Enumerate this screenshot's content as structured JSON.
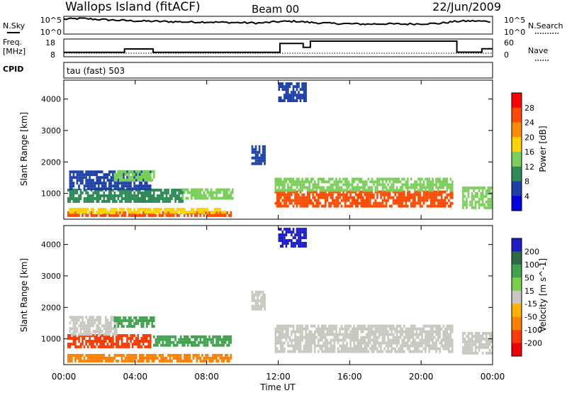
{
  "header": {
    "station": "Wallops Island (fitACF)",
    "beam": "Beam 00",
    "date": "22/Jun/2009"
  },
  "panels": {
    "nsky_label": "N.Sky",
    "nsearch_label": "N.Search",
    "freq_label_line1": "Freq.",
    "freq_label_line2": "[MHz]",
    "nave_label": "Nave",
    "cpid_label": "CPID",
    "cpid_text": "tau (fast) 503",
    "noise_ticks_left": [
      "10^5",
      "10^0"
    ],
    "noise_ticks_right": [
      "10^5",
      "10^0"
    ],
    "freq_ticks": [
      "18",
      "8"
    ],
    "nave_ticks": [
      "60",
      "0"
    ]
  },
  "chart_data": [
    {
      "type": "line",
      "name": "noise",
      "x_range": [
        "00:00",
        "24:00"
      ],
      "series": [
        {
          "name": "N.Sky",
          "x": [
            0,
            1,
            2,
            3,
            4,
            5,
            6,
            7,
            8,
            9,
            10,
            11,
            12,
            13,
            14,
            15,
            16,
            17,
            18,
            19,
            20,
            21,
            22,
            23,
            24
          ],
          "values": [
            4.2,
            4.4,
            4.1,
            3.9,
            3.7,
            3.6,
            3.5,
            3.4,
            3.4,
            3.3,
            3.2,
            3.1,
            3.5,
            3.6,
            3.2,
            3.0,
            2.9,
            2.8,
            2.9,
            2.8,
            2.9,
            3.0,
            3.6,
            3.7,
            3.5
          ]
        }
      ]
    },
    {
      "type": "line",
      "name": "frequency",
      "x_range": [
        "00:00",
        "24:00"
      ],
      "ylim": [
        8,
        18
      ],
      "series": [
        {
          "name": "Freq.",
          "x": [
            0,
            3.4,
            3.4,
            5.0,
            5.0,
            12.1,
            12.1,
            13.4,
            13.4,
            13.8,
            13.8,
            22.0,
            22.0,
            23.4,
            23.4,
            24
          ],
          "values": [
            10.5,
            10.5,
            12.4,
            12.4,
            10.5,
            10.5,
            15.5,
            15.5,
            13.3,
            13.3,
            16.8,
            16.8,
            10.6,
            10.6,
            12.5,
            12.5
          ]
        }
      ]
    },
    {
      "type": "heatmap",
      "name": "power",
      "title": "Power [dB]",
      "xlabel": "Time UT",
      "ylabel": "Slant Range [km]",
      "x_ticks": [
        "00:00",
        "04:00",
        "08:00",
        "12:00",
        "16:00",
        "20:00",
        "00:00"
      ],
      "y_ticks": [
        1000,
        2000,
        3000,
        4000
      ],
      "ylim": [
        180,
        4600
      ],
      "colorbar_ticks": [
        "28",
        "24",
        "20",
        "16",
        "12",
        "8",
        "4"
      ],
      "colorbar_colors": [
        "#ff0000",
        "#ff4a00",
        "#ff8c00",
        "#ffd200",
        "#7ad05a",
        "#2e8b57",
        "#1c3faa",
        "#0000e0"
      ],
      "regions": [
        {
          "t0": 0.2,
          "t1": 9.3,
          "r0": 250,
          "r1": 360,
          "level": 28
        },
        {
          "t0": 0.3,
          "t1": 9.0,
          "r0": 360,
          "r1": 500,
          "level": 18
        },
        {
          "t0": 0.2,
          "t1": 6.6,
          "r0": 700,
          "r1": 1100,
          "level": 10
        },
        {
          "t0": 0.3,
          "t1": 4.8,
          "r0": 1100,
          "r1": 1700,
          "level": 6
        },
        {
          "t0": 2.8,
          "t1": 5.0,
          "r0": 1380,
          "r1": 1680,
          "level": 16
        },
        {
          "t0": 6.6,
          "t1": 9.4,
          "r0": 800,
          "r1": 1100,
          "level": 14
        },
        {
          "t0": 10.5,
          "t1": 11.2,
          "r0": 1900,
          "r1": 2500,
          "level": 8
        },
        {
          "t0": 11.8,
          "t1": 21.8,
          "r0": 550,
          "r1": 1050,
          "level": 28
        },
        {
          "t0": 11.8,
          "t1": 21.8,
          "r0": 1050,
          "r1": 1450,
          "level": 14
        },
        {
          "t0": 12.0,
          "t1": 13.5,
          "r0": 3900,
          "r1": 4450,
          "level": 6
        },
        {
          "t0": 22.3,
          "t1": 24.0,
          "r0": 500,
          "r1": 1150,
          "level": 16
        }
      ]
    },
    {
      "type": "heatmap",
      "name": "velocity",
      "title": "Velocity [m s^-1]",
      "xlabel": "Time UT",
      "ylabel": "Slant Range [km]",
      "x_ticks": [
        "00:00",
        "04:00",
        "08:00",
        "12:00",
        "16:00",
        "20:00",
        "00:00"
      ],
      "y_ticks": [
        1000,
        2000,
        3000,
        4000
      ],
      "ylim": [
        180,
        4600
      ],
      "colorbar_ticks": [
        "200",
        "100",
        "50",
        "15",
        "-15",
        "-50",
        "-100",
        "-200"
      ],
      "colorbar_colors": [
        "#1c1cc8",
        "#2e6b44",
        "#3fa34d",
        "#78d04a",
        "#c8c8c0",
        "#ffb000",
        "#ff8000",
        "#ff3a00",
        "#ee0000"
      ],
      "regions": [
        {
          "t0": 0.2,
          "t1": 9.3,
          "r0": 250,
          "r1": 500,
          "level": -50
        },
        {
          "t0": 0.2,
          "t1": 4.8,
          "r0": 700,
          "r1": 1150,
          "level": -100
        },
        {
          "t0": 0.3,
          "t1": 3.0,
          "r0": 1100,
          "r1": 1700,
          "level": 0
        },
        {
          "t0": 2.8,
          "t1": 5.0,
          "r0": 1350,
          "r1": 1700,
          "level": 50
        },
        {
          "t0": 5.0,
          "t1": 9.3,
          "r0": 750,
          "r1": 1100,
          "level": 50
        },
        {
          "t0": 10.5,
          "t1": 11.2,
          "r0": 1900,
          "r1": 2500,
          "level": 0
        },
        {
          "t0": 11.8,
          "t1": 21.8,
          "r0": 550,
          "r1": 1450,
          "level": 0
        },
        {
          "t0": 12.0,
          "t1": 13.5,
          "r0": 3900,
          "r1": 4450,
          "level": 200
        },
        {
          "t0": 22.3,
          "t1": 24.0,
          "r0": 500,
          "r1": 1150,
          "level": 0
        }
      ]
    }
  ]
}
